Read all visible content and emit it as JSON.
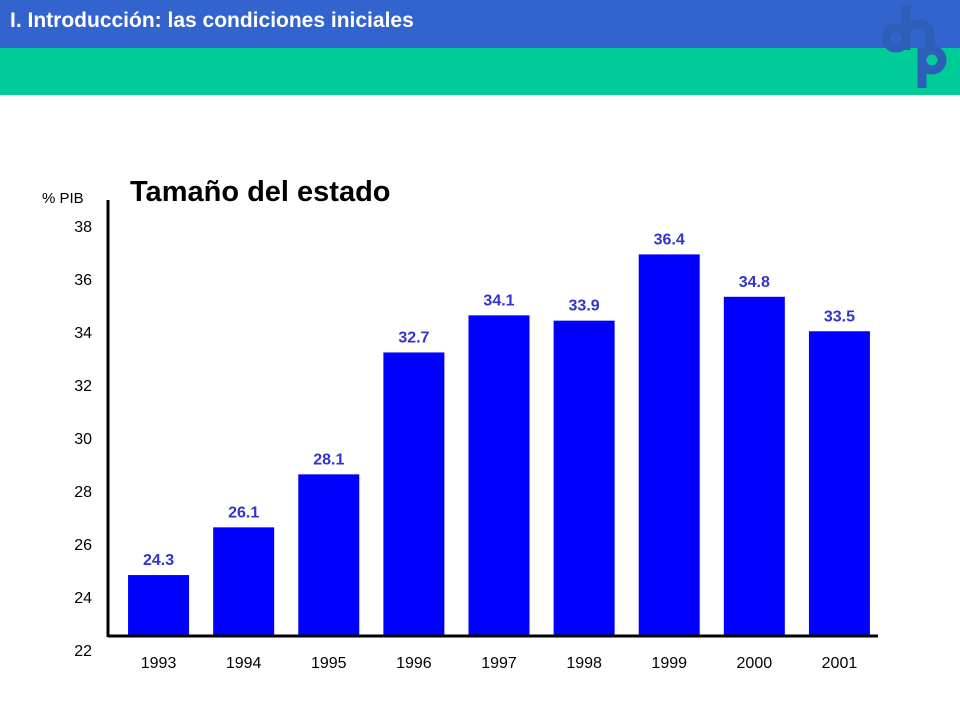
{
  "header": {
    "title": "I.  Introducción: las condiciones iniciales",
    "band_color": "#3363CC",
    "accent_color": "#00CC99"
  },
  "logo": {
    "name": "dnp-logo",
    "color": "#2E5FB8",
    "letters": "dnp"
  },
  "chart_data": {
    "type": "bar",
    "title": "Tamaño del estado",
    "ylabel": "% PIB",
    "xlabel": "",
    "categories": [
      "1993",
      "1994",
      "1995",
      "1996",
      "1997",
      "1998",
      "1999",
      "2000",
      "2001"
    ],
    "values": [
      24.3,
      26.1,
      28.1,
      32.7,
      34.1,
      33.9,
      36.4,
      34.8,
      33.5
    ],
    "data_labels": [
      "24.3",
      "26.1",
      "28.1",
      "32.7",
      "34.1",
      "33.9",
      "36.4",
      "34.8",
      "33.5"
    ],
    "ylim": [
      22,
      38
    ],
    "yticks": [
      22,
      24,
      26,
      28,
      30,
      32,
      34,
      36,
      38
    ],
    "bar_color": "#0000FF",
    "label_color": "#3333CC",
    "grid": false,
    "legend": "none"
  }
}
